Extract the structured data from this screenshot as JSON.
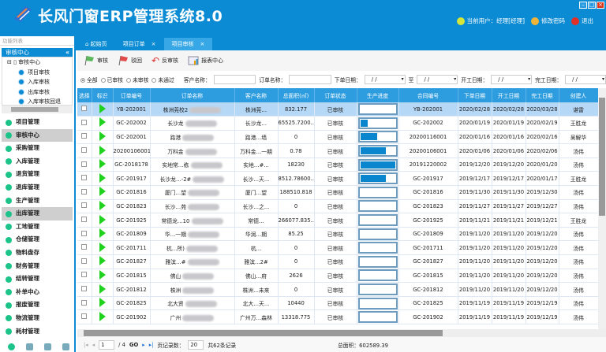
{
  "app": {
    "title": "长风门窗ERP管理系统8.0",
    "current_user": "当前用户：经理[经理]",
    "change_password": "修改密码",
    "logout": "退出"
  },
  "sidebar": {
    "func_list": "功能列表",
    "section": "审核中心",
    "tree": {
      "root": "审核中心",
      "items": [
        "项目审核",
        "入库审核",
        "出库审核",
        "入库审核回退"
      ]
    },
    "menu": [
      "项目管理",
      "审核中心",
      "采购管理",
      "入库管理",
      "退货管理",
      "退库管理",
      "生产管理",
      "出库管理",
      "工地管理",
      "仓储管理",
      "物料盘存",
      "财务管理",
      "结转管理",
      "补单中心",
      "报废管理",
      "物流管理",
      "耗材管理"
    ],
    "selected": [
      "审核中心",
      "出库管理"
    ]
  },
  "tabs": [
    {
      "label": "起始页"
    },
    {
      "label": "项目订单"
    },
    {
      "label": "项目审核",
      "active": true
    }
  ],
  "toolbar": {
    "approve": "审核",
    "reject": "驳回",
    "unapprove": "反审核",
    "report": "报表中心"
  },
  "filter": {
    "status_options": [
      "全部",
      "已审核",
      "未审核",
      "未通过"
    ],
    "selected": "全部",
    "customer_label": "客户名称：",
    "order_label": "订单名称：",
    "order_date_label": "下单日期：",
    "to_label": "至",
    "start_date_label": "开工日期：",
    "finish_date_label": "完工日期：",
    "date_placeholder": "/  /"
  },
  "table": {
    "columns": [
      "选择",
      "标识",
      "订单编号",
      "订单名称",
      "客户名称",
      "总面积(㎡)",
      "订单状态",
      "生产进度",
      "合同编号",
      "下单日期",
      "开工日期",
      "完工日期",
      "创建人"
    ],
    "rows": [
      {
        "no": "YB-202001",
        "name": "株洲莞校2",
        "customer": "株洲莞…",
        "area": "832.177",
        "status": "已审核",
        "progress": 0,
        "contract": "YB-202001",
        "order": "2020/02/28",
        "start": "2020/02/28",
        "finish": "2020/03/28",
        "creator": "谌雷"
      },
      {
        "no": "GC-202002",
        "name": "长沙龙",
        "customer": "长沙龙…",
        "area": "65525.7200...",
        "status": "已审核",
        "progress": 22,
        "contract": "GC-202002",
        "order": "2020/01/19",
        "start": "2020/01/19",
        "finish": "2020/02/19",
        "creator": "王胜龙"
      },
      {
        "no": "GC-202001",
        "name": "路港",
        "customer": "路港…墙",
        "area": "0",
        "status": "已审核",
        "progress": 48,
        "contract": "20200116001",
        "order": "2020/01/16",
        "start": "2020/01/16",
        "finish": "2020/02/16",
        "creator": "吴解华"
      },
      {
        "no": "20200106001",
        "name": "万科金",
        "customer": "万科金…一期",
        "area": "0.78",
        "status": "已审核",
        "progress": 74,
        "contract": "20200106001",
        "order": "2020/01/06",
        "start": "2020/01/06",
        "finish": "2020/02/06",
        "creator": "汤伟"
      },
      {
        "no": "GC-2018178",
        "name": "实地常…栋",
        "customer": "实地…#...",
        "area": "18230",
        "status": "已审核",
        "progress": 100,
        "contract": "20191220002",
        "order": "2019/12/20",
        "start": "2019/12/20",
        "finish": "2020/01/20",
        "creator": "汤伟"
      },
      {
        "no": "GC-201917",
        "name": "长沙龙…-2#",
        "customer": "长沙…天...",
        "area": "8512.78600...",
        "status": "已审核",
        "progress": 74,
        "contract": "GC-201917",
        "order": "2019/12/17",
        "start": "2019/12/17",
        "finish": "2020/01/17",
        "creator": "王胜龙"
      },
      {
        "no": "GC-201816",
        "name": "厦门…望",
        "customer": "厦门…望",
        "area": "188510.818",
        "status": "已审核",
        "progress": 0,
        "contract": "GC-201816",
        "order": "2019/11/30",
        "start": "2019/11/30",
        "finish": "2019/12/30",
        "creator": "汤伟"
      },
      {
        "no": "GC-201823",
        "name": "长沙…苑",
        "customer": "长沙…之...",
        "area": "0",
        "status": "已审核",
        "progress": 0,
        "contract": "GC-201823",
        "order": "2019/11/27",
        "start": "2019/11/27",
        "finish": "2019/12/27",
        "creator": "汤伟"
      },
      {
        "no": "GC-201925",
        "name": "常德龙…10",
        "customer": "常德…",
        "area": "266077.835...",
        "status": "已审核",
        "progress": 0,
        "contract": "GC-201925",
        "order": "2019/11/21",
        "start": "2019/11/21",
        "finish": "2019/12/21",
        "creator": "王胜龙"
      },
      {
        "no": "GC-201809",
        "name": "华…一期",
        "customer": "华润…期",
        "area": "85.25",
        "status": "已审核",
        "progress": 0,
        "contract": "GC-201809",
        "order": "2019/11/20",
        "start": "2019/11/20",
        "finish": "2019/12/20",
        "creator": "汤伟"
      },
      {
        "no": "GC-201711",
        "name": "杭…所)",
        "customer": "杭…",
        "area": "0",
        "status": "已审核",
        "progress": 0,
        "contract": "GC-201711",
        "order": "2019/11/20",
        "start": "2019/11/20",
        "finish": "2019/12/20",
        "creator": "汤伟"
      },
      {
        "no": "GC-201827",
        "name": "雅滨…#",
        "customer": "雅滨…2#",
        "area": "0",
        "status": "已审核",
        "progress": 0,
        "contract": "GC-201827",
        "order": "2019/11/20",
        "start": "2019/11/20",
        "finish": "2019/12/20",
        "creator": "汤伟"
      },
      {
        "no": "GC-201815",
        "name": "佛山",
        "customer": "佛山…府",
        "area": "2626",
        "status": "已审核",
        "progress": 0,
        "contract": "GC-201815",
        "order": "2019/11/20",
        "start": "2019/11/20",
        "finish": "2019/12/20",
        "creator": "汤伟"
      },
      {
        "no": "GC-201812",
        "name": "株洲",
        "customer": "株洲…未来",
        "area": "0",
        "status": "已审核",
        "progress": 0,
        "contract": "GC-201812",
        "order": "2019/11/20",
        "start": "2019/11/20",
        "finish": "2019/12/20",
        "creator": "汤伟"
      },
      {
        "no": "GC-201825",
        "name": "北大资",
        "customer": "北大…天...",
        "area": "10440",
        "status": "已审核",
        "progress": 0,
        "contract": "GC-201825",
        "order": "2019/11/19",
        "start": "2019/11/19",
        "finish": "2019/12/19",
        "creator": "汤伟"
      },
      {
        "no": "GC-201902",
        "name": "广州",
        "customer": "广州万…森林",
        "area": "13318.775",
        "status": "已审核",
        "progress": 0,
        "contract": "GC-201902",
        "order": "2019/11/19",
        "start": "2019/11/19",
        "finish": "2019/12/19",
        "creator": "汤伟"
      }
    ]
  },
  "pager": {
    "page": "1",
    "total_pages": "/ 4",
    "go": "GO",
    "page_size_label": "页记录数：",
    "page_size": "20",
    "total_records": "共62条记录",
    "total_area": "总面积：602589.39"
  },
  "colors": {
    "header": "#0b8bd4",
    "table_header": "#2e9de0",
    "progress": "#0a86cf",
    "selected_row": "#b6d8f7"
  }
}
